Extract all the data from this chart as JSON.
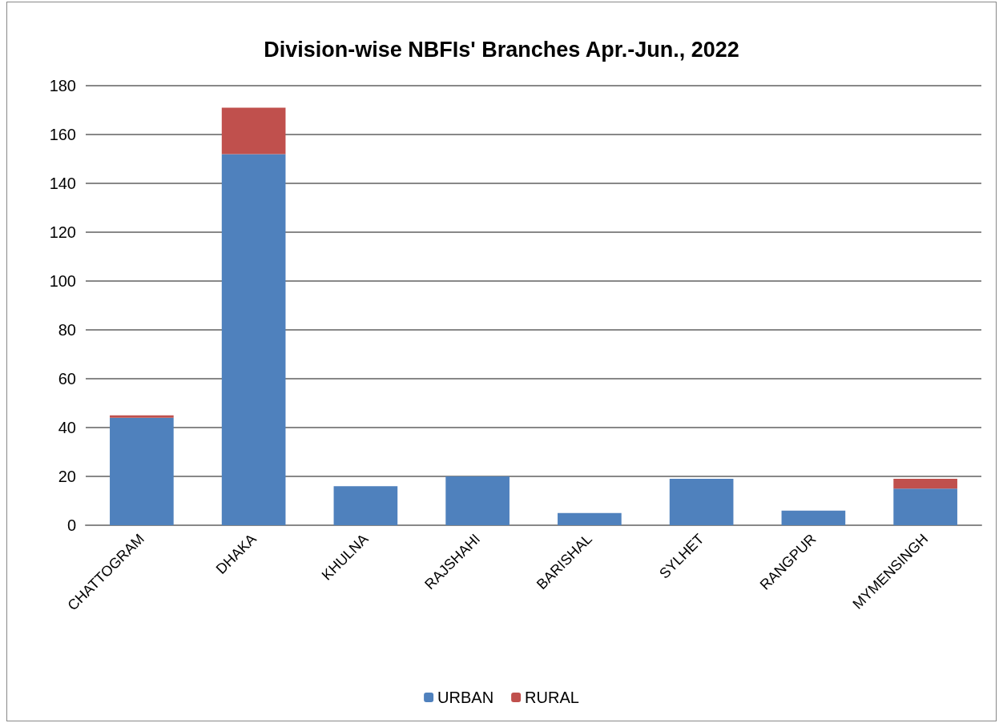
{
  "chart_data": {
    "type": "bar",
    "title": "Division-wise NBFIs' Branches Apr.-Jun., 2022",
    "categories": [
      "CHATTOGRAM",
      "DHAKA",
      "KHULNA",
      "RAJSHAHI",
      "BARISHAL",
      "SYLHET",
      "RANGPUR",
      "MYMENSINGH"
    ],
    "series": [
      {
        "name": "URBAN",
        "color": "#4f81bd",
        "values": [
          44,
          152,
          16,
          20,
          5,
          19,
          6,
          15
        ]
      },
      {
        "name": "RURAL",
        "color": "#c0504d",
        "values": [
          1,
          19,
          0,
          0,
          0,
          0,
          0,
          4
        ]
      }
    ],
    "stacked": true,
    "ylim": [
      0,
      180
    ],
    "yticks": [
      0,
      20,
      40,
      60,
      80,
      100,
      120,
      140,
      160,
      180
    ],
    "grid": "y",
    "legend": "bottom"
  }
}
